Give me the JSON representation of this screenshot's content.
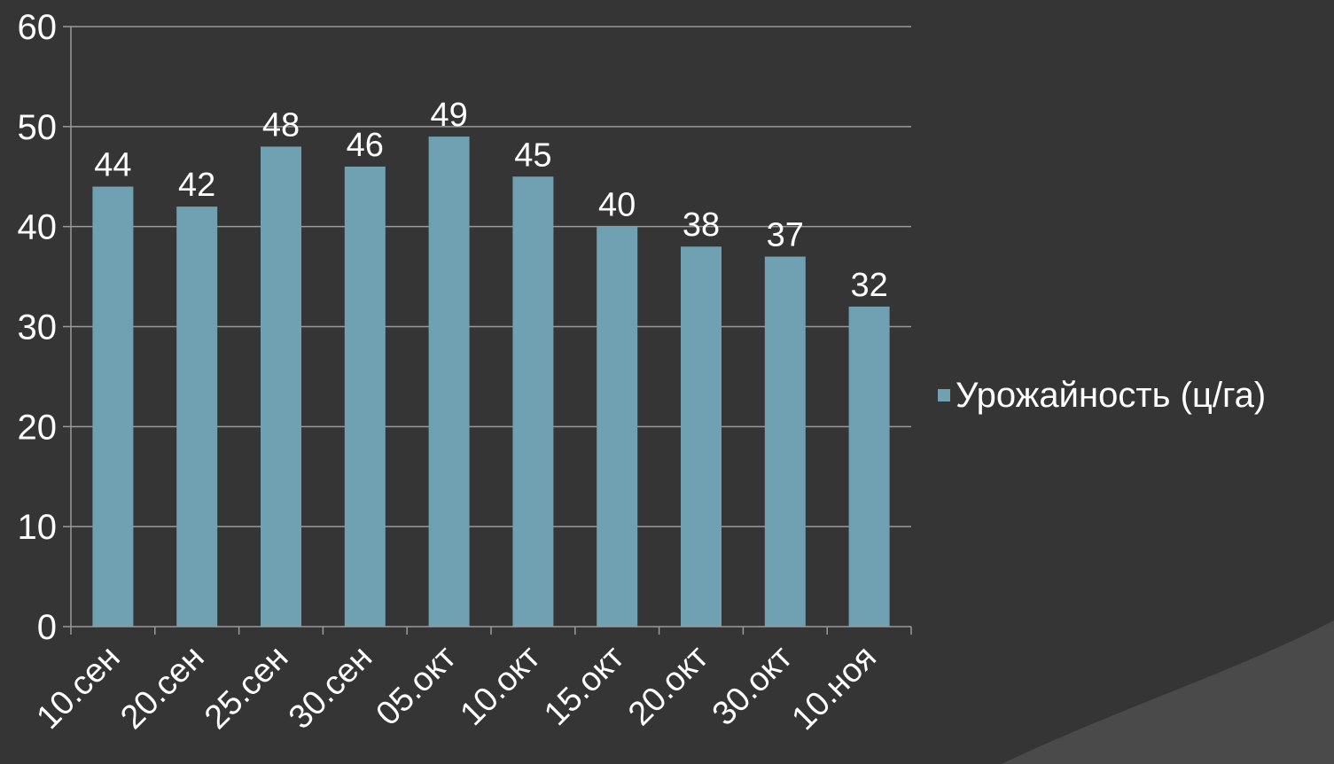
{
  "chart_data": {
    "type": "bar",
    "title": "",
    "xlabel": "",
    "ylabel": "",
    "categories": [
      "10.сен",
      "20.сен",
      "25.сен",
      "30.сен",
      "05.окт",
      "10.окт",
      "15.окт",
      "20.окт",
      "30.окт",
      "10.ноя"
    ],
    "series": [
      {
        "name": "Урожайность (ц/га)",
        "values": [
          44,
          42,
          48,
          46,
          49,
          45,
          40,
          38,
          37,
          32
        ],
        "color": "#6fa1b3"
      }
    ],
    "ylim": [
      0,
      60
    ],
    "yticks": [
      0,
      10,
      20,
      30,
      40,
      50,
      60
    ],
    "grid": true,
    "data_labels": true,
    "legend_position": "right"
  },
  "colors": {
    "background": "#353535",
    "gridline": "#9a9a9a",
    "text": "#ffffff",
    "corner_decoration": "#4a4a4a"
  }
}
